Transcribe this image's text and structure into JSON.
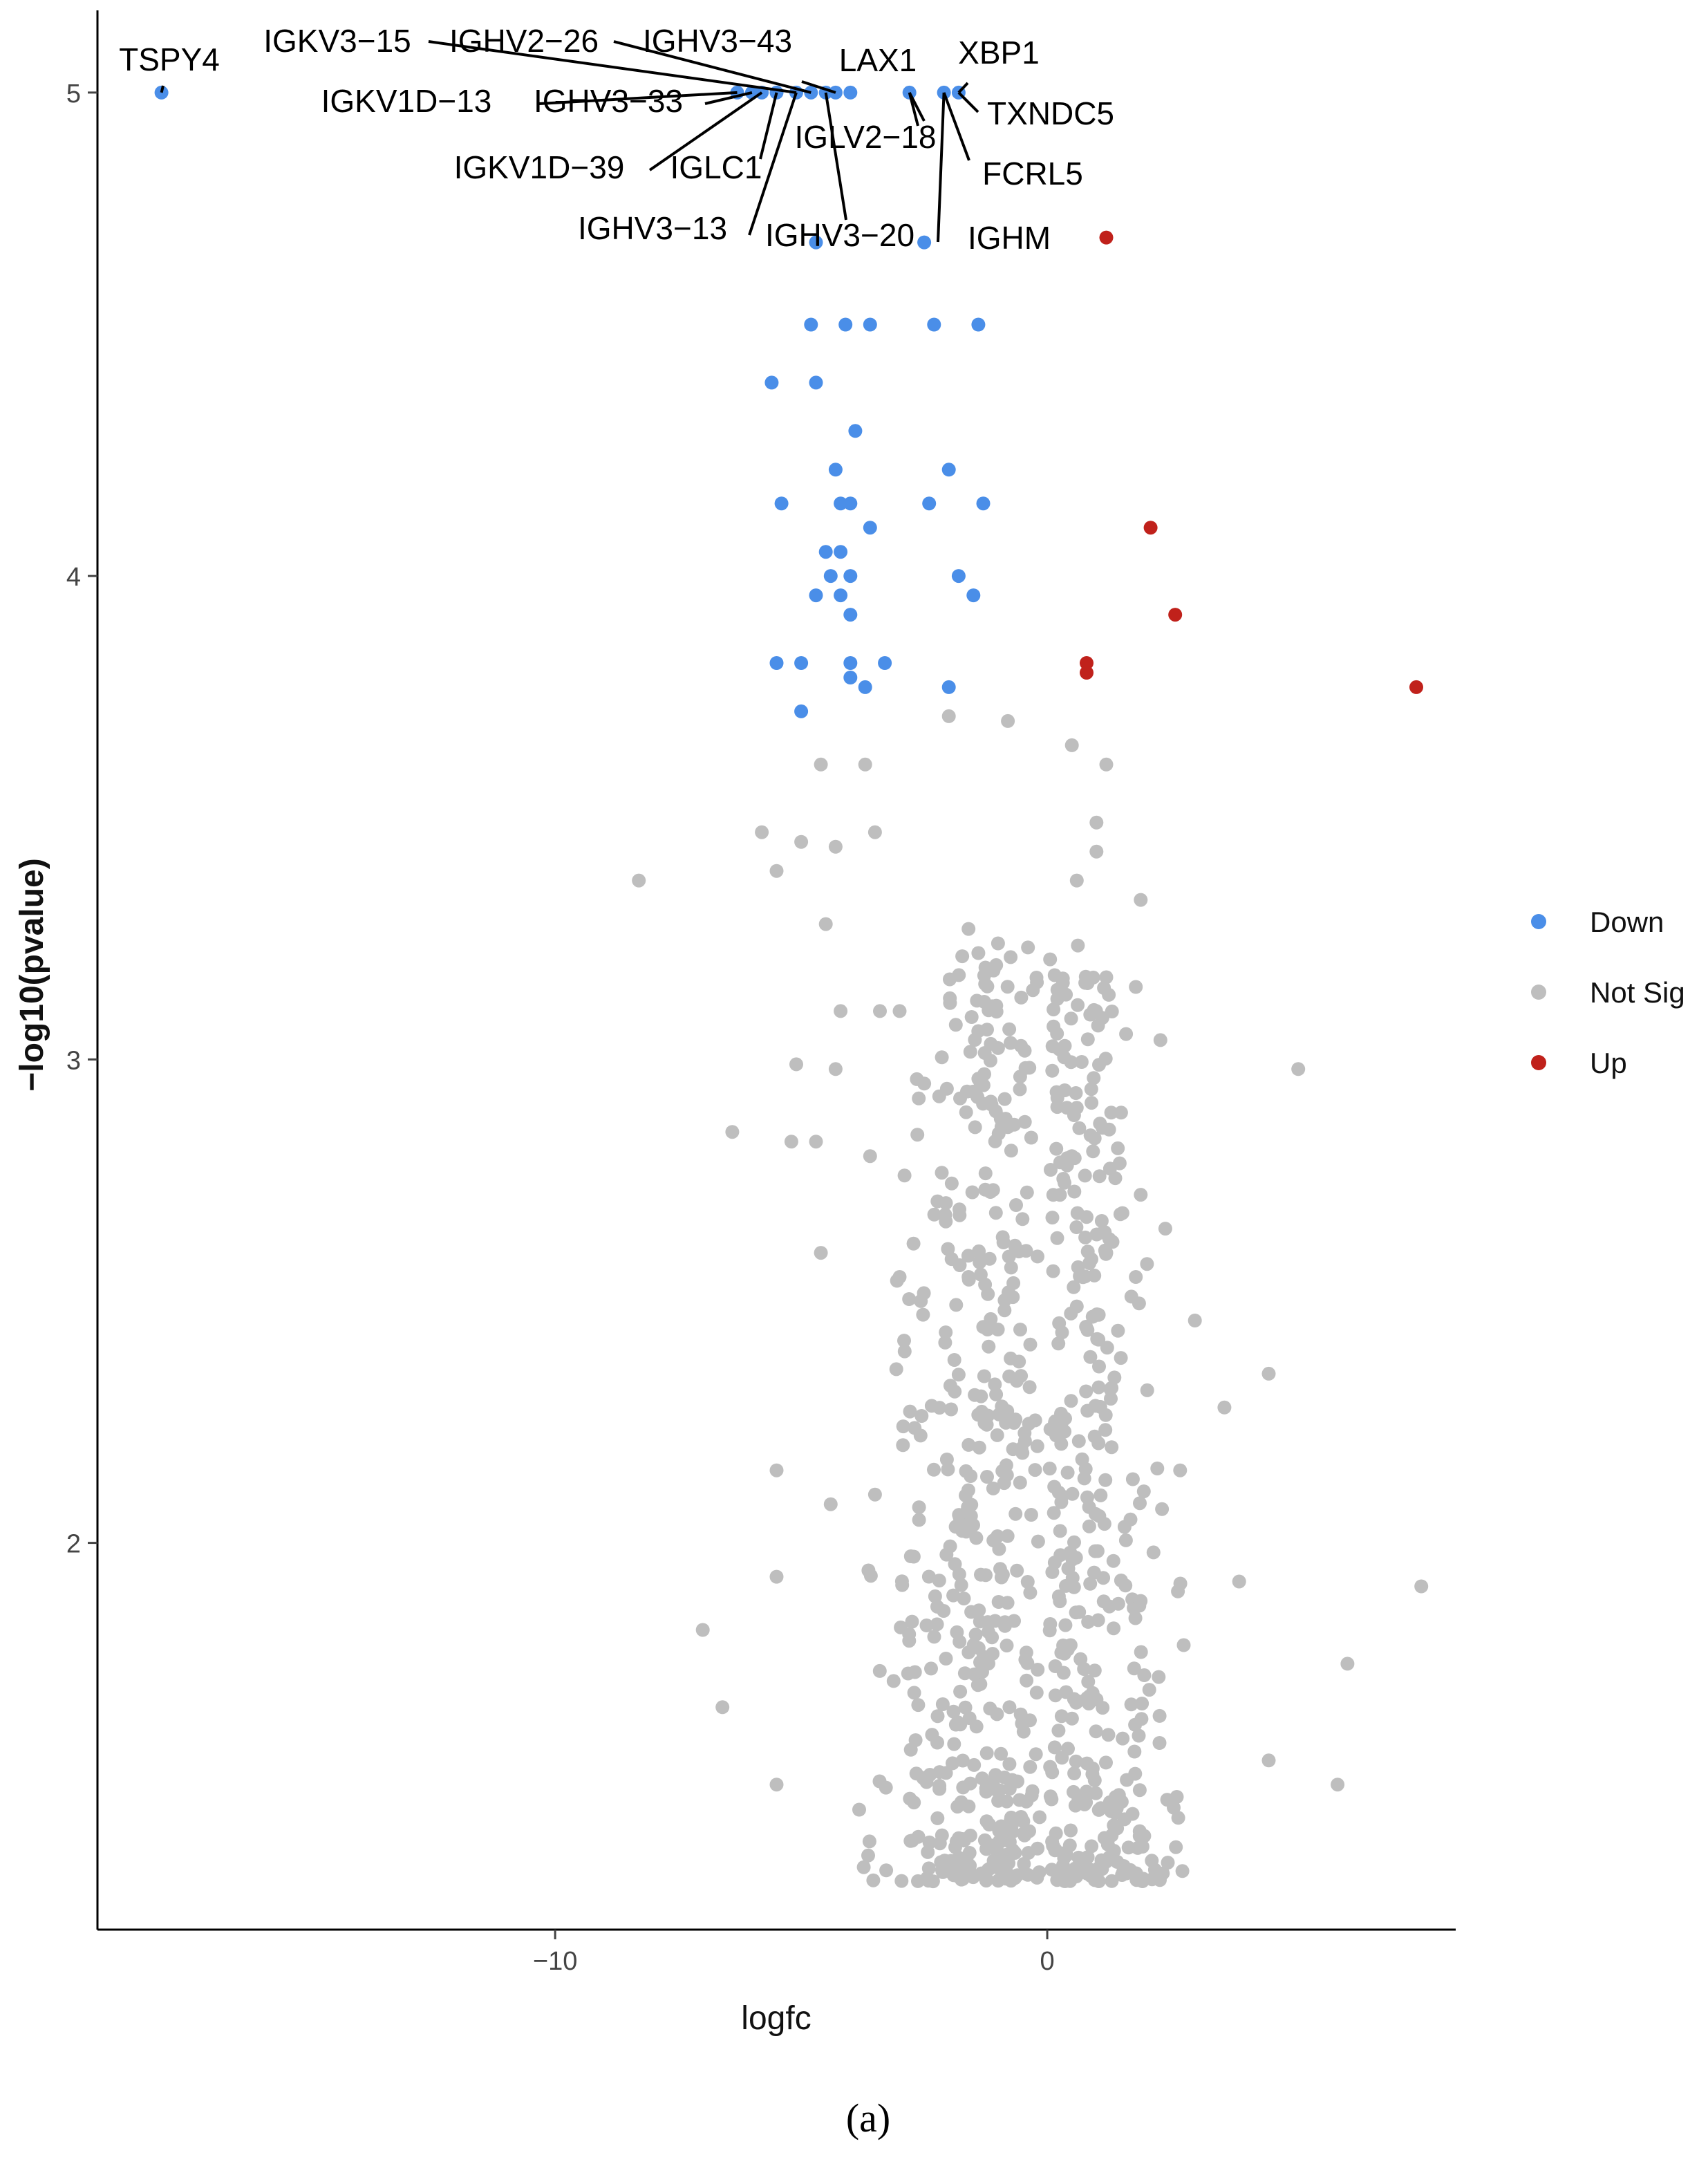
{
  "chart_data": {
    "type": "scatter",
    "title": "",
    "xlabel": "logfc",
    "ylabel": "−log10(pvalue)",
    "xlim": [
      -19.3,
      8.3
    ],
    "ylim": [
      1.2,
      5.17
    ],
    "x_ticks": [
      -10,
      0
    ],
    "y_ticks": [
      2,
      3,
      4,
      5
    ],
    "x_tick_labels": [
      "−10",
      "0"
    ],
    "y_tick_labels": [
      "2",
      "3",
      "4",
      "5"
    ],
    "grid": false,
    "legend_position": "right",
    "panel_label": "(a)",
    "colors": {
      "Down": "#4a8ee8",
      "Not Sig": "#bebebe",
      "Up": "#c0211b"
    },
    "legend": [
      "Down",
      "Not Sig",
      "Up"
    ],
    "series": [
      {
        "name": "Down",
        "points": [
          [
            -18.0,
            5.0
          ],
          [
            -6.3,
            5.0
          ],
          [
            -6.0,
            5.0
          ],
          [
            -5.8,
            5.0
          ],
          [
            -5.5,
            5.0
          ],
          [
            -5.1,
            5.0
          ],
          [
            -4.8,
            5.0
          ],
          [
            -4.5,
            5.0
          ],
          [
            -4.3,
            5.0
          ],
          [
            -4.0,
            5.0
          ],
          [
            -2.8,
            5.0
          ],
          [
            -2.1,
            5.0
          ],
          [
            -1.8,
            5.0
          ],
          [
            -4.7,
            4.69
          ],
          [
            -2.5,
            4.69
          ],
          [
            -4.8,
            4.52
          ],
          [
            -4.1,
            4.52
          ],
          [
            -3.6,
            4.52
          ],
          [
            -2.3,
            4.52
          ],
          [
            -1.4,
            4.52
          ],
          [
            -5.6,
            4.4
          ],
          [
            -4.7,
            4.4
          ],
          [
            -3.9,
            4.3
          ],
          [
            -4.3,
            4.22
          ],
          [
            -2.0,
            4.22
          ],
          [
            -5.4,
            4.15
          ],
          [
            -4.2,
            4.15
          ],
          [
            -4.0,
            4.15
          ],
          [
            -2.4,
            4.15
          ],
          [
            -1.3,
            4.15
          ],
          [
            -3.6,
            4.1
          ],
          [
            -4.5,
            4.05
          ],
          [
            -4.2,
            4.05
          ],
          [
            -4.4,
            4.0
          ],
          [
            -4.0,
            4.0
          ],
          [
            -1.8,
            4.0
          ],
          [
            -4.7,
            3.96
          ],
          [
            -4.2,
            3.96
          ],
          [
            -1.5,
            3.96
          ],
          [
            -4.0,
            3.92
          ],
          [
            -5.5,
            3.82
          ],
          [
            -5.0,
            3.82
          ],
          [
            -4.0,
            3.82
          ],
          [
            -3.3,
            3.82
          ],
          [
            -4.0,
            3.79
          ],
          [
            -3.7,
            3.77
          ],
          [
            -2.0,
            3.77
          ],
          [
            -5.0,
            3.72
          ]
        ]
      },
      {
        "name": "Up",
        "points": [
          [
            1.2,
            4.7
          ],
          [
            2.1,
            4.1
          ],
          [
            2.6,
            3.92
          ],
          [
            0.8,
            3.82
          ],
          [
            0.8,
            3.8
          ],
          [
            7.5,
            3.77
          ]
        ]
      },
      {
        "name": "Not Sig",
        "points": [
          [
            -8.3,
            3.37
          ],
          [
            -6.4,
            2.85
          ],
          [
            -7.0,
            1.82
          ],
          [
            -6.6,
            1.66
          ],
          [
            -5.5,
            1.93
          ],
          [
            -5.5,
            1.5
          ],
          [
            5.1,
            2.98
          ],
          [
            4.5,
            2.35
          ],
          [
            6.1,
            1.75
          ],
          [
            7.6,
            1.91
          ],
          [
            5.9,
            1.5
          ],
          [
            4.5,
            1.55
          ],
          [
            1.8,
            3.15
          ],
          [
            2.3,
            3.04
          ],
          [
            1.2,
            3.17
          ],
          [
            3.0,
            2.46
          ],
          [
            3.6,
            2.28
          ],
          [
            3.9,
            1.92
          ],
          [
            -5.8,
            3.47
          ],
          [
            -5.5,
            3.39
          ],
          [
            -5.0,
            3.45
          ],
          [
            -4.6,
            3.61
          ],
          [
            -4.3,
            3.44
          ],
          [
            -3.7,
            3.61
          ],
          [
            -3.5,
            3.47
          ],
          [
            -2.0,
            3.71
          ],
          [
            -0.8,
            3.7
          ],
          [
            0.5,
            3.65
          ],
          [
            1.2,
            3.61
          ],
          [
            1.0,
            3.49
          ],
          [
            1.0,
            3.43
          ],
          [
            0.6,
            3.37
          ],
          [
            1.9,
            3.33
          ],
          [
            -1.6,
            3.27
          ],
          [
            -1.0,
            3.24
          ],
          [
            -1.4,
            3.22
          ],
          [
            -4.5,
            3.28
          ],
          [
            -3.4,
            3.1
          ],
          [
            -3.0,
            3.1
          ],
          [
            -4.2,
            3.1
          ],
          [
            -5.1,
            2.99
          ],
          [
            -4.3,
            2.98
          ],
          [
            -2.5,
            2.95
          ],
          [
            -1.4,
            2.96
          ],
          [
            0.4,
            2.9
          ],
          [
            0.6,
            2.9
          ],
          [
            1.3,
            2.89
          ],
          [
            1.5,
            2.89
          ],
          [
            -0.8,
            2.86
          ],
          [
            -5.2,
            2.83
          ],
          [
            -4.7,
            2.83
          ],
          [
            -3.6,
            2.8
          ],
          [
            -2.9,
            2.76
          ],
          [
            -1.1,
            2.73
          ],
          [
            0.5,
            2.8
          ],
          [
            1.9,
            2.72
          ],
          [
            2.4,
            2.65
          ],
          [
            -4.6,
            2.6
          ],
          [
            -3.0,
            2.55
          ],
          [
            -1.6,
            2.55
          ],
          [
            1.2,
            2.6
          ],
          [
            1.8,
            2.55
          ],
          [
            -5.5,
            2.15
          ],
          [
            -4.4,
            2.08
          ],
          [
            -3.5,
            2.1
          ],
          [
            -0.2,
            2.2
          ],
          [
            0.3,
            2.25
          ],
          [
            2.7,
            2.15
          ]
        ],
        "scatter_cloud": {
          "description": "dense cloud of non-significant genes",
          "left_lobe": {
            "x_range": [
              -4.3,
              -0.2
            ],
            "y_range": [
              1.3,
              3.3
            ]
          },
          "right_lobe": {
            "x_range": [
              0.1,
              3.6
            ],
            "y_range": [
              1.3,
              3.3
            ]
          }
        }
      }
    ],
    "annotations": [
      {
        "label": "TSPY4",
        "point": [
          -18.0,
          5.0
        ]
      },
      {
        "label": "IGKV3−15",
        "point": [
          -5.1,
          5.0
        ]
      },
      {
        "label": "IGHV2−26",
        "point": [
          -4.8,
          5.0
        ]
      },
      {
        "label": "IGHV3−43",
        "point": [
          -4.3,
          5.0
        ]
      },
      {
        "label": "LAX1",
        "point": [
          -2.8,
          5.0
        ]
      },
      {
        "label": "XBP1",
        "point": [
          -1.8,
          5.0
        ]
      },
      {
        "label": "IGKV1D−13",
        "point": [
          -6.3,
          5.0
        ]
      },
      {
        "label": "IGHV3−33",
        "point": [
          -6.0,
          5.0
        ]
      },
      {
        "label": "TXNDC5",
        "point": [
          -1.8,
          5.0
        ]
      },
      {
        "label": "IGLV2−18",
        "point": [
          -2.8,
          5.0
        ]
      },
      {
        "label": "IGKV1D−39",
        "point": [
          -5.8,
          5.0
        ]
      },
      {
        "label": "IGLC1",
        "point": [
          -5.5,
          5.0
        ]
      },
      {
        "label": "FCRL5",
        "point": [
          -2.1,
          5.0
        ]
      },
      {
        "label": "IGHV3−13",
        "point": [
          -5.1,
          5.0
        ]
      },
      {
        "label": "IGHV3−20",
        "point": [
          -4.5,
          5.0
        ]
      },
      {
        "label": "IGHM",
        "point": [
          -2.1,
          5.0
        ]
      }
    ]
  }
}
